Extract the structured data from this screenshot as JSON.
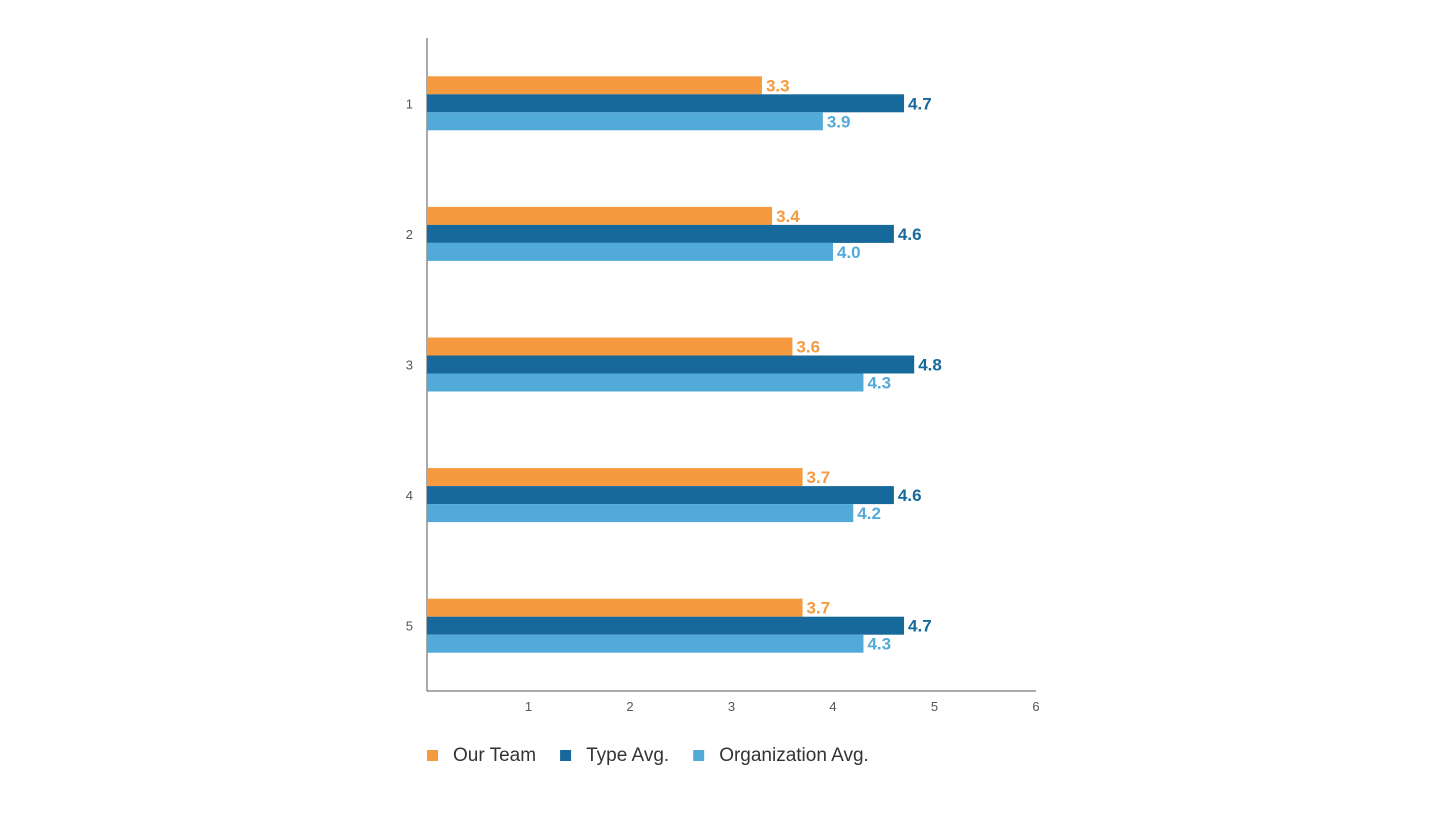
{
  "chart_data": {
    "type": "bar",
    "orientation": "horizontal",
    "categories": [
      "1",
      "2",
      "3",
      "4",
      "5"
    ],
    "series": [
      {
        "name": "Our Team",
        "color": "#f59a3e",
        "values": [
          3.3,
          3.4,
          3.6,
          3.7,
          3.7
        ],
        "labels": [
          "3.3",
          "3.4",
          "3.6",
          "3.7",
          "3.7"
        ]
      },
      {
        "name": "Type Avg.",
        "color": "#16699a",
        "values": [
          4.7,
          4.6,
          4.8,
          4.6,
          4.7
        ],
        "labels": [
          "4.7",
          "4.6",
          "4.8",
          "4.6",
          "4.7"
        ]
      },
      {
        "name": "Organization Avg.",
        "color": "#52aad8",
        "values": [
          3.9,
          4.0,
          4.3,
          4.2,
          4.3
        ],
        "labels": [
          "3.9",
          "4.0",
          "4.3",
          "4.2",
          "4.3"
        ]
      }
    ],
    "xlim": [
      0,
      6
    ],
    "xticks": [
      "1",
      "2",
      "3",
      "4",
      "5",
      "6"
    ],
    "title": "",
    "xlabel": "",
    "ylabel": "",
    "grid": false,
    "legend_position": "bottom"
  }
}
